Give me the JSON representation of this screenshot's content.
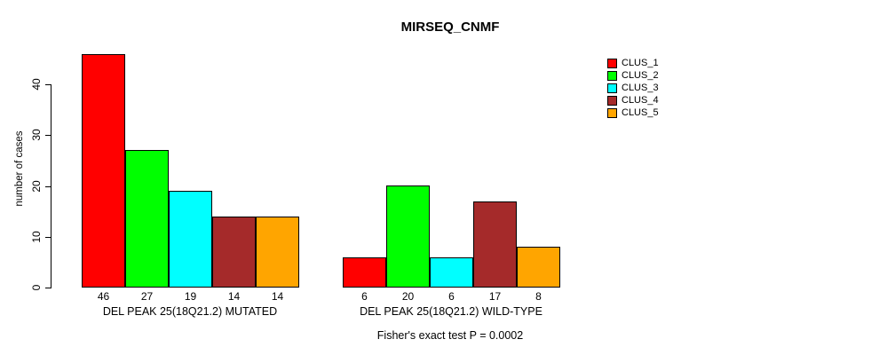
{
  "title": "MIRSEQ_CNMF",
  "chart_data": {
    "type": "bar",
    "title": "MIRSEQ_CNMF",
    "xlabel": "",
    "ylabel": "number of cases",
    "ylim": [
      0,
      46
    ],
    "yticks": [
      0,
      10,
      20,
      30,
      40
    ],
    "grid": false,
    "legend_position": "right",
    "categories": [
      "DEL PEAK 25(18Q21.2) MUTATED",
      "DEL PEAK 25(18Q21.2) WILD-TYPE"
    ],
    "series": [
      {
        "name": "CLUS_1",
        "color": "#FF0000",
        "values": [
          46,
          6
        ]
      },
      {
        "name": "CLUS_2",
        "color": "#00FF00",
        "values": [
          27,
          20
        ]
      },
      {
        "name": "CLUS_3",
        "color": "#00FFFF",
        "values": [
          19,
          6
        ]
      },
      {
        "name": "CLUS_4",
        "color": "#A52A2A",
        "values": [
          14,
          17
        ]
      },
      {
        "name": "CLUS_5",
        "color": "#FFA500",
        "values": [
          14,
          8
        ]
      }
    ],
    "bar_value_labels": [
      [
        46,
        27,
        19,
        14,
        14
      ],
      [
        6,
        20,
        6,
        17,
        8
      ]
    ],
    "annotation": "Fisher's exact test P = 0.0002"
  }
}
